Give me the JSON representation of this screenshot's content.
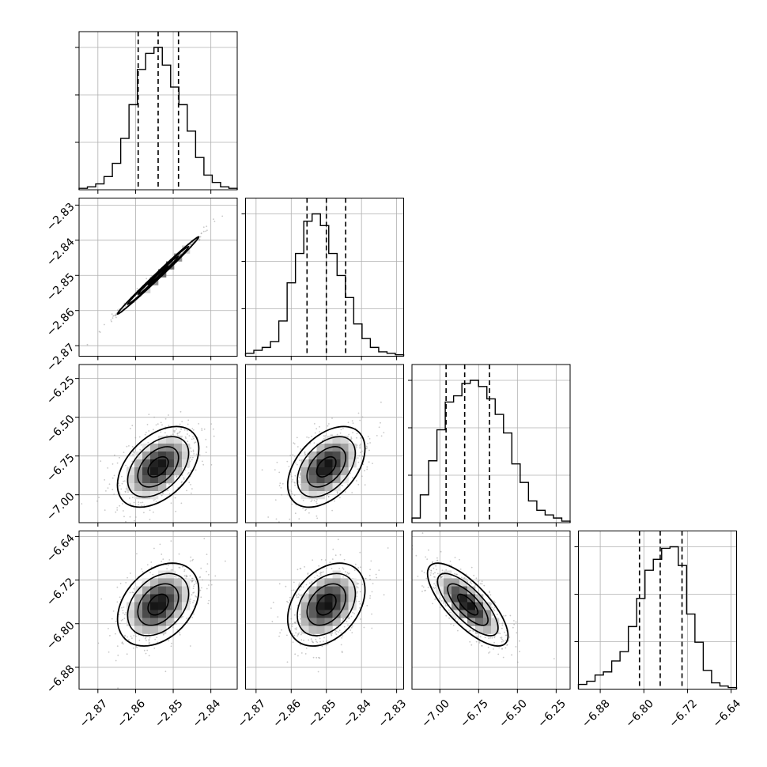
{
  "chart_data": {
    "type": "corner",
    "grid": true,
    "colors": {
      "hist": "#000000",
      "quantile": "#000000",
      "grid": "#b0b0b0",
      "density_dark": "#000000",
      "density_light": "#ffffff",
      "points": "#9a9a9a"
    },
    "quantiles_style": "dashed",
    "params": [
      {
        "range": [
          -2.875,
          -2.833
        ],
        "ticks": [
          -2.87,
          -2.86,
          -2.85,
          -2.84
        ],
        "tick_labels": [
          "−2.87",
          "−2.86",
          "−2.85",
          "−2.84"
        ],
        "hist": [
          1,
          2,
          4,
          9,
          18,
          35,
          58,
          82,
          93,
          97,
          85,
          70,
          58,
          40,
          22,
          10,
          5,
          2,
          1
        ],
        "quantiles": [
          -2.8593,
          -2.854,
          -2.8486
        ],
        "mean": -2.854,
        "sd": 0.0054
      },
      {
        "range": [
          -2.873,
          -2.828
        ],
        "ticks": [
          -2.87,
          -2.86,
          -2.85,
          -2.84,
          -2.83
        ],
        "tick_labels": [
          "−2.87",
          "−2.86",
          "−2.85",
          "−2.84",
          "−2.83"
        ],
        "hist": [
          2,
          4,
          6,
          10,
          24,
          50,
          70,
          92,
          97,
          89,
          70,
          55,
          40,
          22,
          12,
          6,
          3,
          2,
          1
        ],
        "quantiles": [
          -2.8555,
          -2.85,
          -2.8445
        ],
        "mean": -2.85,
        "sd": 0.0055
      },
      {
        "range": [
          -7.18,
          -6.16
        ],
        "ticks": [
          -7.0,
          -6.75,
          -6.5,
          -6.25
        ],
        "tick_labels": [
          "−7.00",
          "−6.75",
          "−6.50",
          "−6.25"
        ],
        "hist": [
          3,
          18,
          40,
          60,
          78,
          82,
          90,
          92,
          88,
          80,
          70,
          58,
          38,
          26,
          14,
          8,
          5,
          3,
          1
        ],
        "quantiles": [
          -6.96,
          -6.84,
          -6.68
        ],
        "mean": -6.82,
        "sd": 0.13
      },
      {
        "range": [
          -6.92,
          -6.63
        ],
        "ticks": [
          -6.88,
          -6.8,
          -6.72,
          -6.64
        ],
        "tick_labels": [
          "−6.88",
          "−6.80",
          "−6.72",
          "−6.64"
        ],
        "hist": [
          3,
          5,
          9,
          11,
          18,
          24,
          40,
          58,
          76,
          83,
          90,
          91,
          79,
          48,
          30,
          12,
          4,
          2,
          1
        ],
        "quantiles": [
          -6.808,
          -6.77,
          -6.73
        ],
        "mean": -6.765,
        "sd": 0.038
      }
    ],
    "correlations": [
      [
        1,
        0.995,
        0.45,
        0.35
      ],
      [
        0.995,
        1,
        0.45,
        0.35
      ],
      [
        0.45,
        0.45,
        1,
        -0.75
      ],
      [
        0.35,
        0.35,
        -0.75,
        1
      ]
    ]
  }
}
